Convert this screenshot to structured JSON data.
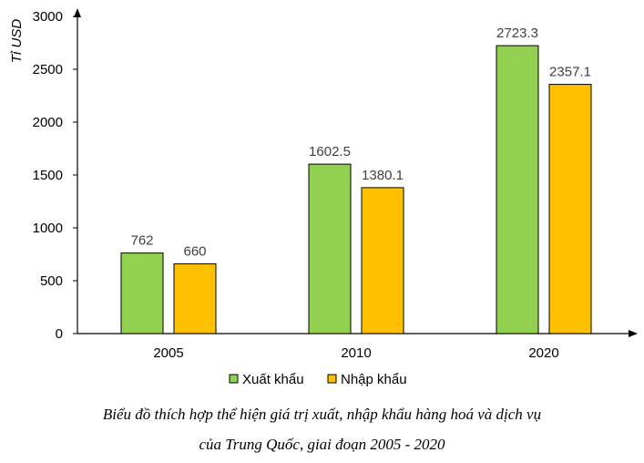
{
  "chart_data": {
    "type": "bar",
    "categories": [
      "2005",
      "2010",
      "2020"
    ],
    "series": [
      {
        "name": "Xuất khẩu",
        "values": [
          762,
          1602.5,
          2723.3
        ],
        "color": "#92d050",
        "labels": [
          "762",
          "1602.5",
          "2723.3"
        ]
      },
      {
        "name": "Nhập khẩu",
        "values": [
          660,
          1380.1,
          2357.1
        ],
        "color": "#ffc000",
        "labels": [
          "660",
          "1380.1",
          "2357.1"
        ]
      }
    ],
    "ylabel": "Tỉ USD",
    "ylim": [
      0,
      3000
    ],
    "yticks": [
      "0",
      "500",
      "1000",
      "1500",
      "2000",
      "2500",
      "3000"
    ],
    "legend": "bottom",
    "grid": false
  },
  "caption": {
    "line1": "Biểu đồ thích hợp thể hiện giá trị xuất, nhập khẩu hàng hoá và dịch vụ",
    "line2": "của Trung Quốc, giai đoạn 2005 - 2020"
  }
}
